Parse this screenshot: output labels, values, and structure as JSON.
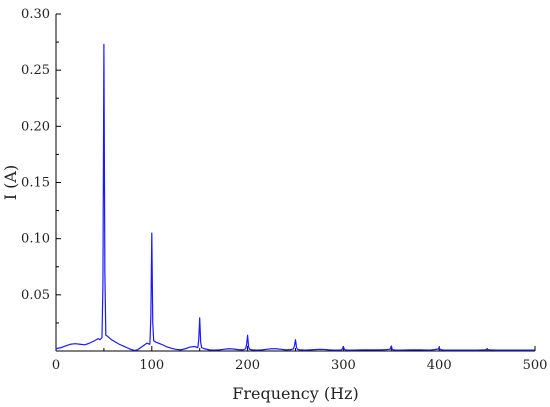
{
  "chart_data": {
    "type": "line",
    "title": "",
    "xlabel": "Frequency (Hz)",
    "ylabel": "I (A)",
    "xlim": [
      0,
      500
    ],
    "ylim": [
      0,
      0.3
    ],
    "x_ticks": [
      0,
      100,
      200,
      300,
      400,
      500
    ],
    "x_tick_labels": [
      "0",
      "100",
      "200",
      "300",
      "400",
      "500"
    ],
    "y_ticks": [
      0.05,
      0.1,
      0.15,
      0.2,
      0.25,
      0.3
    ],
    "y_tick_labels": [
      "0.05",
      "0.10",
      "0.15",
      "0.20",
      "0.25",
      "0.30"
    ],
    "grid": false,
    "legend": "none",
    "series": [
      {
        "color": "#1a1aff",
        "x": [
          0,
          5,
          10,
          15,
          20,
          25,
          30,
          35,
          40,
          44,
          46,
          48,
          49,
          50,
          51,
          52,
          54,
          58,
          62,
          66,
          70,
          74,
          78,
          82,
          85,
          90,
          95,
          98,
          99,
          100,
          101,
          102,
          104,
          110,
          115,
          120,
          125,
          130,
          135,
          140,
          145,
          148,
          149,
          150,
          151,
          152,
          155,
          160,
          165,
          170,
          175,
          180,
          185,
          190,
          195,
          198,
          199,
          200,
          201,
          202,
          205,
          210,
          215,
          220,
          225,
          230,
          235,
          240,
          245,
          248,
          249,
          250,
          251,
          252,
          255,
          260,
          265,
          270,
          275,
          280,
          285,
          290,
          295,
          298,
          299,
          300,
          301,
          302,
          305,
          310,
          320,
          330,
          340,
          345,
          348,
          349,
          350,
          351,
          352,
          355,
          360,
          370,
          380,
          390,
          395,
          399,
          400,
          401,
          405,
          410,
          420,
          430,
          440,
          448,
          450,
          452,
          460,
          470,
          480,
          490,
          500
        ],
        "y": [
          0.002,
          0.003,
          0.0045,
          0.006,
          0.0065,
          0.006,
          0.0055,
          0.007,
          0.009,
          0.011,
          0.01,
          0.012,
          0.06,
          0.273,
          0.07,
          0.014,
          0.013,
          0.01,
          0.008,
          0.006,
          0.0045,
          0.003,
          0.0015,
          0.0005,
          0.001,
          0.004,
          0.007,
          0.006,
          0.03,
          0.105,
          0.025,
          0.009,
          0.008,
          0.006,
          0.004,
          0.0025,
          0.0015,
          0.001,
          0.002,
          0.0035,
          0.004,
          0.003,
          0.01,
          0.0295,
          0.008,
          0.003,
          0.002,
          0.001,
          0.0008,
          0.001,
          0.0015,
          0.002,
          0.0018,
          0.0012,
          0.001,
          0.002,
          0.006,
          0.014,
          0.004,
          0.0015,
          0.001,
          0.0008,
          0.001,
          0.0015,
          0.002,
          0.002,
          0.0015,
          0.001,
          0.0012,
          0.002,
          0.005,
          0.01,
          0.0035,
          0.0015,
          0.001,
          0.0008,
          0.001,
          0.0012,
          0.0015,
          0.0014,
          0.001,
          0.0008,
          0.0008,
          0.001,
          0.002,
          0.004,
          0.0015,
          0.001,
          0.0008,
          0.0008,
          0.001,
          0.001,
          0.001,
          0.0012,
          0.0015,
          0.002,
          0.0045,
          0.0015,
          0.001,
          0.0008,
          0.0008,
          0.001,
          0.001,
          0.0008,
          0.0012,
          0.0018,
          0.003,
          0.0012,
          0.0008,
          0.0008,
          0.0008,
          0.0008,
          0.0008,
          0.001,
          0.0015,
          0.001,
          0.0008,
          0.0008,
          0.0008,
          0.0008,
          0.0008
        ]
      }
    ]
  }
}
